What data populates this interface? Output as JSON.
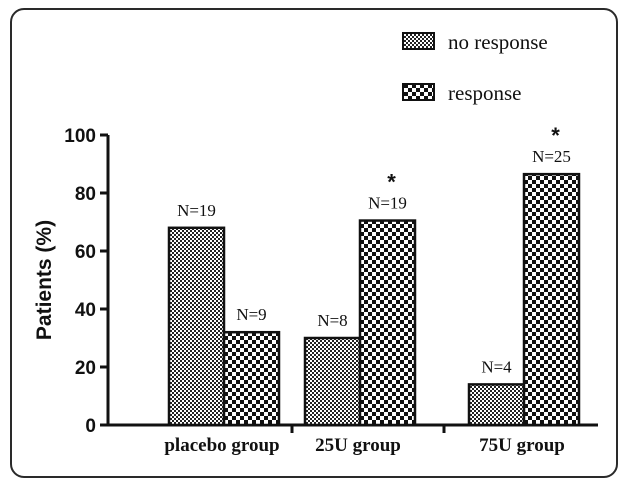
{
  "chart_data": {
    "type": "bar",
    "title": "",
    "xlabel": "",
    "ylabel": "Patients (%)",
    "ylim": [
      0,
      100
    ],
    "yticks": [
      "0",
      "20",
      "40",
      "60",
      "80",
      "100"
    ],
    "categories": [
      "placebo group",
      "25U group",
      "75U group"
    ],
    "legend_position": "top-right",
    "series": [
      {
        "name": "no response",
        "pattern": "fine-checker",
        "values": [
          68,
          30,
          14
        ],
        "labels": [
          "N=19",
          "N=8",
          "N=4"
        ],
        "markers": [
          "",
          "",
          ""
        ]
      },
      {
        "name": "response",
        "pattern": "coarse-checker",
        "values": [
          32,
          70.5,
          86.5
        ],
        "labels": [
          "N=9",
          "N=19",
          "N=25"
        ],
        "markers": [
          "",
          "*",
          "*"
        ]
      }
    ],
    "colors": {
      "ink": "#111111",
      "fill": "#ffffff"
    }
  }
}
